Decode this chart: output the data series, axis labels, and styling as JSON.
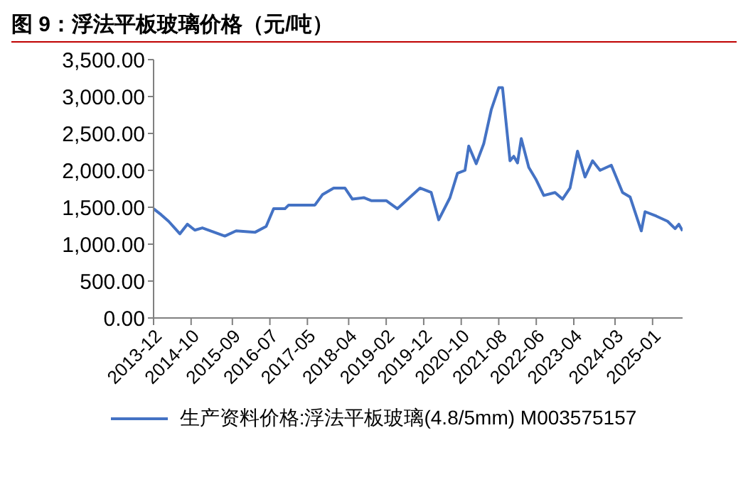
{
  "chart_data": {
    "type": "line",
    "title": "图 9：浮法平板玻璃价格（元/吨）",
    "legend": "bottom",
    "marker": "none",
    "line_style": "solid",
    "xlim": [
      "2013-12",
      "2025-09"
    ],
    "xticks": [
      "2013-12",
      "2014-10",
      "2015-09",
      "2016-07",
      "2017-05",
      "2018-04",
      "2019-02",
      "2019-12",
      "2020-10",
      "2021-08",
      "2022-06",
      "2023-04",
      "2024-03",
      "2025-01"
    ],
    "ylim": [
      0,
      3500
    ],
    "yticks": [
      {
        "value": 0,
        "label": "0.00"
      },
      {
        "value": 500,
        "label": "500.00"
      },
      {
        "value": 1000,
        "label": "1,000.00"
      },
      {
        "value": 1500,
        "label": "1,500.00"
      },
      {
        "value": 2000,
        "label": "2,000.00"
      },
      {
        "value": 2500,
        "label": "2,500.00"
      },
      {
        "value": 3000,
        "label": "3,000.00"
      },
      {
        "value": 3500,
        "label": "3,500.00"
      }
    ],
    "series": [
      {
        "name": "生产资料价格:浮法平板玻璃(4.8/5mm) M003575157",
        "color": "#4472c4",
        "x": [
          "2013-12",
          "2014-02",
          "2014-04",
          "2014-07",
          "2014-09",
          "2014-11",
          "2015-01",
          "2015-07",
          "2015-10",
          "2016-03",
          "2016-06",
          "2016-08",
          "2016-11",
          "2016-12",
          "2017-07",
          "2017-09",
          "2017-12",
          "2018-03",
          "2018-05",
          "2018-08",
          "2018-10",
          "2019-02",
          "2019-05",
          "2019-11",
          "2020-02",
          "2020-04",
          "2020-07",
          "2020-09",
          "2020-11",
          "2020-12",
          "2021-02",
          "2021-04",
          "2021-06",
          "2021-08",
          "2021-09",
          "2021-11",
          "2021-12",
          "2022-01",
          "2022-02",
          "2022-04",
          "2022-06",
          "2022-08",
          "2022-11",
          "2023-01",
          "2023-03",
          "2023-05",
          "2023-07",
          "2023-09",
          "2023-11",
          "2024-02",
          "2024-05",
          "2024-07",
          "2024-10",
          "2024-11",
          "2025-02",
          "2025-05",
          "2025-07",
          "2025-08",
          "2025-09"
        ],
        "values": [
          1480,
          1400,
          1310,
          1140,
          1270,
          1190,
          1220,
          1110,
          1180,
          1160,
          1240,
          1480,
          1480,
          1530,
          1530,
          1670,
          1760,
          1760,
          1610,
          1630,
          1590,
          1590,
          1480,
          1760,
          1700,
          1330,
          1630,
          1960,
          2000,
          2330,
          2090,
          2360,
          2820,
          3120,
          3120,
          2130,
          2190,
          2100,
          2430,
          2040,
          1870,
          1660,
          1700,
          1610,
          1760,
          2260,
          1910,
          2130,
          2000,
          2070,
          1700,
          1640,
          1180,
          1440,
          1380,
          1310,
          1210,
          1270,
          1180
        ]
      }
    ]
  }
}
